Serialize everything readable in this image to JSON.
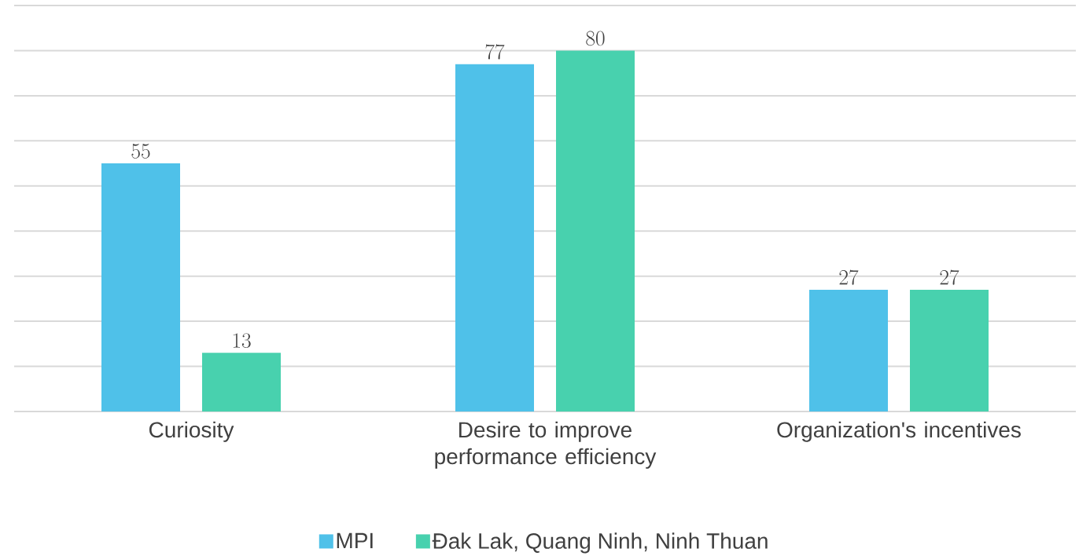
{
  "chart_data": {
    "type": "bar",
    "categories": [
      "Curiosity",
      "Desire to improve performance efficiency",
      "Organization's incentives"
    ],
    "series": [
      {
        "name": "MPI",
        "color": "#4fc1e9",
        "values": [
          55,
          77,
          27
        ]
      },
      {
        "name": "Đak Lak, Quang Ninh, Ninh Thuan",
        "color": "#48d1ae",
        "values": [
          13,
          80,
          27
        ]
      }
    ],
    "ylim": [
      0,
      90
    ],
    "yticks": [
      {
        "value": 0,
        "label": null
      },
      {
        "value": 10,
        "label": null
      },
      {
        "value": 20,
        "label": null
      },
      {
        "value": 30,
        "label": null
      },
      {
        "value": 40,
        "label": null
      },
      {
        "value": 50,
        "label": null
      },
      {
        "value": 60,
        "label": null
      },
      {
        "value": 70,
        "label": null
      },
      {
        "value": 80,
        "label": null
      },
      {
        "value": 90,
        "label": null
      }
    ],
    "grid": "y",
    "data_labels": true,
    "legend": "bottom",
    "tick_labels": "x"
  }
}
